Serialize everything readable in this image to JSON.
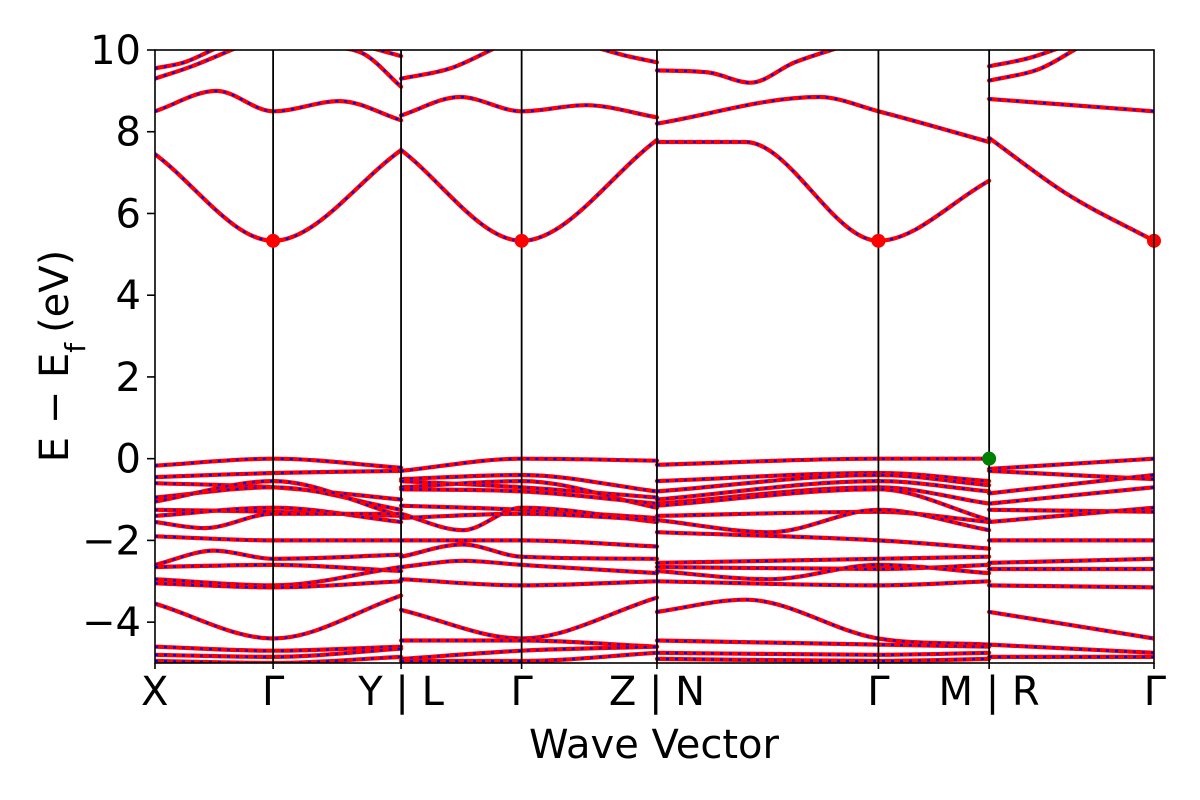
{
  "chart_data": {
    "type": "line",
    "title": "",
    "xlabel": "Wave Vector",
    "ylabel": "E − E",
    "ylabel_sub": "f",
    "ylabel_unit": "(eV)",
    "ylim": [
      -5,
      10
    ],
    "yticks": [
      -4,
      -2,
      0,
      2,
      4,
      6,
      8,
      10
    ],
    "ytick_labels": [
      "−4",
      "−2",
      "0",
      "2",
      "4",
      "6",
      "8",
      "10"
    ],
    "grid": false,
    "legend": "none",
    "kpath_labels": [
      "X",
      "Γ",
      "Y | L",
      "Γ",
      "Z | N",
      "Γ",
      "M | R",
      "Γ"
    ],
    "colors": {
      "up": "#ff0000",
      "down": "#0000ff",
      "cbm": "#ff0000",
      "vbm": "#008000"
    },
    "segments": [
      {
        "name": "X-Γ-Y",
        "range": [
          0.0,
          1.0
        ],
        "divider": 0.48,
        "bands": [
          {
            "x": [
              0,
              0.48,
              1
            ],
            "y": [
              7.45,
              5.33,
              7.55
            ]
          },
          {
            "x": [
              0,
              0.25,
              0.48,
              0.75,
              1
            ],
            "y": [
              8.5,
              9.0,
              8.5,
              8.75,
              8.28
            ]
          },
          {
            "x": [
              0,
              0.15,
              0.35,
              0.48
            ],
            "y": [
              9.3,
              9.6,
              10.1,
              10.4
            ]
          },
          {
            "x": [
              0,
              0.12,
              0.25
            ],
            "y": [
              9.55,
              9.7,
              10.05
            ]
          },
          {
            "x": [
              0.7,
              0.85,
              1
            ],
            "y": [
              10.1,
              9.9,
              9.1
            ]
          },
          {
            "x": [
              0.85,
              1
            ],
            "y": [
              10.1,
              9.85
            ]
          },
          {
            "x": [
              0,
              0.48,
              1
            ],
            "y": [
              -0.17,
              0.0,
              -0.22
            ]
          },
          {
            "x": [
              0,
              0.48,
              1
            ],
            "y": [
              -0.45,
              -0.35,
              -0.3
            ]
          },
          {
            "x": [
              0,
              0.48,
              1
            ],
            "y": [
              -0.6,
              -0.7,
              -1.0
            ]
          },
          {
            "x": [
              0,
              0.48,
              1
            ],
            "y": [
              -0.95,
              -0.7,
              -1.25
            ]
          },
          {
            "x": [
              0,
              0.48,
              1
            ],
            "y": [
              -1.05,
              -0.55,
              -1.4
            ]
          },
          {
            "x": [
              0,
              0.48,
              1
            ],
            "y": [
              -1.25,
              -1.3,
              -1.4
            ]
          },
          {
            "x": [
              0,
              0.48,
              1
            ],
            "y": [
              -1.4,
              -1.2,
              -1.55
            ]
          },
          {
            "x": [
              0,
              0.2,
              0.48,
              1
            ],
            "y": [
              -1.55,
              -1.7,
              -1.35,
              -1.35
            ]
          },
          {
            "x": [
              0,
              0.48,
              1
            ],
            "y": [
              -1.9,
              -2.0,
              -2.0
            ]
          },
          {
            "x": [
              0,
              0.24,
              0.48,
              1
            ],
            "y": [
              -2.6,
              -2.25,
              -2.45,
              -2.35
            ]
          },
          {
            "x": [
              0,
              0.48,
              1
            ],
            "y": [
              -2.65,
              -2.6,
              -2.75
            ]
          },
          {
            "x": [
              0,
              0.48,
              1
            ],
            "y": [
              -2.95,
              -3.1,
              -2.65
            ]
          },
          {
            "x": [
              0,
              0.48,
              1
            ],
            "y": [
              -3.05,
              -3.15,
              -3.0
            ]
          },
          {
            "x": [
              0,
              0.48,
              1
            ],
            "y": [
              -3.55,
              -4.4,
              -3.35
            ]
          },
          {
            "x": [
              0,
              0.48,
              1
            ],
            "y": [
              -4.6,
              -4.7,
              -4.6
            ]
          },
          {
            "x": [
              0,
              0.48,
              1
            ],
            "y": [
              -4.8,
              -4.85,
              -4.65
            ]
          },
          {
            "x": [
              0,
              0.48,
              1
            ],
            "y": [
              -4.95,
              -5.0,
              -4.85
            ]
          }
        ]
      },
      {
        "name": "L-Γ-Z",
        "range": [
          1.0,
          2.04
        ],
        "divider": 1.49,
        "bands": [
          {
            "x": [
              1,
              1.49,
              2.04
            ],
            "y": [
              7.55,
              5.33,
              7.8
            ]
          },
          {
            "x": [
              1,
              1.24,
              1.49,
              1.75,
              2.04
            ],
            "y": [
              8.4,
              8.85,
              8.5,
              8.65,
              8.35
            ]
          },
          {
            "x": [
              1,
              1.2,
              1.4
            ],
            "y": [
              9.3,
              9.55,
              10.1
            ]
          },
          {
            "x": [
              1.8,
              1.92,
              2.04
            ],
            "y": [
              10.05,
              9.85,
              9.7
            ]
          },
          {
            "x": [
              1,
              1.49,
              2.04
            ],
            "y": [
              -0.3,
              0.0,
              -0.05
            ]
          },
          {
            "x": [
              1,
              1.49,
              2.04
            ],
            "y": [
              -0.5,
              -0.4,
              -0.8
            ]
          },
          {
            "x": [
              1,
              1.49,
              2.04
            ],
            "y": [
              -0.55,
              -0.7,
              -0.95
            ]
          },
          {
            "x": [
              1,
              1.49,
              2.04
            ],
            "y": [
              -0.7,
              -0.55,
              -1.2
            ]
          },
          {
            "x": [
              1,
              1.49,
              2.04
            ],
            "y": [
              -0.75,
              -0.8,
              -1.1
            ]
          },
          {
            "x": [
              1,
              1.49,
              2.04
            ],
            "y": [
              -1.15,
              -1.25,
              -1.45
            ]
          },
          {
            "x": [
              1,
              1.25,
              1.49,
              2.04
            ],
            "y": [
              -1.35,
              -1.75,
              -1.2,
              -1.55
            ]
          },
          {
            "x": [
              1,
              1.49,
              2.04
            ],
            "y": [
              -1.45,
              -1.35,
              -1.5
            ]
          },
          {
            "x": [
              1,
              1.49,
              2.04
            ],
            "y": [
              -2.0,
              -2.0,
              -2.15
            ]
          },
          {
            "x": [
              1,
              1.25,
              1.49,
              2.04
            ],
            "y": [
              -2.4,
              -2.1,
              -2.4,
              -2.45
            ]
          },
          {
            "x": [
              1,
              1.25,
              1.49,
              2.04
            ],
            "y": [
              -2.65,
              -2.5,
              -2.6,
              -2.8
            ]
          },
          {
            "x": [
              1,
              1.49,
              2.04
            ],
            "y": [
              -2.95,
              -3.1,
              -3.0
            ]
          },
          {
            "x": [
              1,
              1.49,
              2.04
            ],
            "y": [
              -3.7,
              -4.4,
              -3.4
            ]
          },
          {
            "x": [
              1,
              1.49,
              2.04
            ],
            "y": [
              -4.45,
              -4.45,
              -4.6
            ]
          },
          {
            "x": [
              1,
              1.49,
              2.04
            ],
            "y": [
              -4.9,
              -4.7,
              -4.6
            ]
          },
          {
            "x": [
              1,
              1.49,
              2.04
            ],
            "y": [
              -4.95,
              -4.95,
              -4.75
            ]
          }
        ]
      },
      {
        "name": "N-Γ-M",
        "range": [
          2.04,
          3.39
        ],
        "divider": 2.94,
        "bands": [
          {
            "x": [
              2.04,
              2.4,
              2.94,
              3.39
            ],
            "y": [
              7.75,
              7.75,
              5.33,
              6.8
            ]
          },
          {
            "x": [
              2.04,
              2.7,
              2.94,
              3.39
            ],
            "y": [
              8.2,
              8.85,
              8.5,
              7.75
            ]
          },
          {
            "x": [
              2.04,
              2.25,
              2.42,
              2.6,
              2.8
            ],
            "y": [
              9.5,
              9.45,
              9.2,
              9.7,
              10.1
            ]
          },
          {
            "x": [
              2.04,
              2.94,
              3.39
            ],
            "y": [
              -0.15,
              0.0,
              0.0
            ]
          },
          {
            "x": [
              2.04,
              2.94,
              3.39
            ],
            "y": [
              -0.55,
              -0.35,
              -0.55
            ]
          },
          {
            "x": [
              2.04,
              2.94,
              3.39
            ],
            "y": [
              -0.8,
              -0.4,
              -0.65
            ]
          },
          {
            "x": [
              2.04,
              2.94,
              3.39
            ],
            "y": [
              -1.0,
              -0.55,
              -0.8
            ]
          },
          {
            "x": [
              2.04,
              2.94,
              3.39
            ],
            "y": [
              -1.1,
              -0.7,
              -1.1
            ]
          },
          {
            "x": [
              2.04,
              2.94,
              3.39
            ],
            "y": [
              -1.15,
              -0.75,
              -1.5
            ]
          },
          {
            "x": [
              2.04,
              2.94,
              3.39
            ],
            "y": [
              -1.4,
              -1.3,
              -1.55
            ]
          },
          {
            "x": [
              2.04,
              2.5,
              2.94,
              3.39
            ],
            "y": [
              -1.5,
              -1.8,
              -1.25,
              -1.75
            ]
          },
          {
            "x": [
              2.04,
              2.94,
              3.39
            ],
            "y": [
              -1.8,
              -2.0,
              -2.2
            ]
          },
          {
            "x": [
              2.04,
              2.94,
              3.39
            ],
            "y": [
              -2.55,
              -2.45,
              -2.4
            ]
          },
          {
            "x": [
              2.04,
              2.94,
              3.39
            ],
            "y": [
              -2.65,
              -2.7,
              -2.6
            ]
          },
          {
            "x": [
              2.04,
              2.5,
              2.94,
              3.39
            ],
            "y": [
              -2.75,
              -2.95,
              -2.6,
              -2.8
            ]
          },
          {
            "x": [
              2.04,
              2.94,
              3.39
            ],
            "y": [
              -3.0,
              -3.1,
              -3.0
            ]
          },
          {
            "x": [
              2.04,
              2.4,
              2.94,
              3.39
            ],
            "y": [
              -3.75,
              -3.45,
              -4.4,
              -4.55
            ]
          },
          {
            "x": [
              2.04,
              2.94,
              3.39
            ],
            "y": [
              -4.45,
              -4.55,
              -4.6
            ]
          },
          {
            "x": [
              2.04,
              2.94,
              3.39
            ],
            "y": [
              -4.75,
              -4.8,
              -4.75
            ]
          },
          {
            "x": [
              2.04,
              2.94,
              3.39
            ],
            "y": [
              -4.9,
              -4.95,
              -4.9
            ]
          }
        ]
      },
      {
        "name": "R-Γ",
        "range": [
          3.39,
          4.06
        ],
        "divider": null,
        "bands": [
          {
            "x": [
              3.39,
              3.7,
              4.06
            ],
            "y": [
              7.85,
              6.5,
              5.33
            ]
          },
          {
            "x": [
              3.39,
              4.06
            ],
            "y": [
              8.8,
              8.5
            ]
          },
          {
            "x": [
              3.39,
              3.6,
              3.75
            ],
            "y": [
              9.25,
              9.55,
              10.05
            ]
          },
          {
            "x": [
              3.39,
              3.55,
              3.7
            ],
            "y": [
              9.6,
              9.8,
              10.1
            ]
          },
          {
            "x": [
              3.39,
              4.06
            ],
            "y": [
              -0.25,
              0.0
            ]
          },
          {
            "x": [
              3.39,
              4.06
            ],
            "y": [
              -0.3,
              -0.5
            ]
          },
          {
            "x": [
              3.39,
              4.06
            ],
            "y": [
              -0.85,
              -0.4
            ]
          },
          {
            "x": [
              3.39,
              4.06
            ],
            "y": [
              -1.1,
              -0.7
            ]
          },
          {
            "x": [
              3.39,
              4.06
            ],
            "y": [
              -1.25,
              -1.3
            ]
          },
          {
            "x": [
              3.39,
              4.06
            ],
            "y": [
              -1.55,
              -1.2
            ]
          },
          {
            "x": [
              3.39,
              4.06
            ],
            "y": [
              -2.0,
              -2.0
            ]
          },
          {
            "x": [
              3.39,
              4.06
            ],
            "y": [
              -2.55,
              -2.45
            ]
          },
          {
            "x": [
              3.39,
              4.06
            ],
            "y": [
              -2.7,
              -2.7
            ]
          },
          {
            "x": [
              3.39,
              4.06
            ],
            "y": [
              -3.1,
              -3.15
            ]
          },
          {
            "x": [
              3.39,
              4.06
            ],
            "y": [
              -3.75,
              -4.4
            ]
          },
          {
            "x": [
              3.39,
              4.06
            ],
            "y": [
              -4.55,
              -4.75
            ]
          },
          {
            "x": [
              3.39,
              4.06
            ],
            "y": [
              -4.85,
              -4.85
            ]
          }
        ]
      }
    ],
    "markers": [
      {
        "name": "cbm",
        "x": 0.48,
        "y": 5.33,
        "color": "#ff0000"
      },
      {
        "name": "cbm",
        "x": 1.49,
        "y": 5.33,
        "color": "#ff0000"
      },
      {
        "name": "cbm",
        "x": 2.94,
        "y": 5.33,
        "color": "#ff0000"
      },
      {
        "name": "cbm",
        "x": 4.06,
        "y": 5.33,
        "color": "#ff0000"
      },
      {
        "name": "vbm",
        "x": 3.39,
        "y": 0.0,
        "color": "#008000"
      }
    ]
  }
}
